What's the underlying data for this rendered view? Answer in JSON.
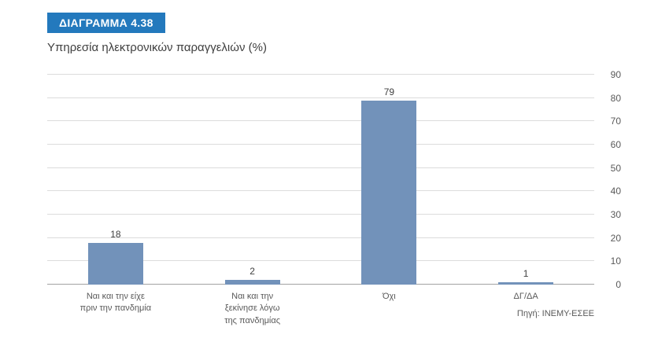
{
  "header": {
    "badge": "ΔΙΑΓΡΑΜΜΑ 4.38",
    "title": "Υπηρεσία ηλεκτρονικών παραγγελιών (%)"
  },
  "chart_data": {
    "type": "bar",
    "categories": [
      "Ναι και την είχε\nπριν την πανδημία",
      "Ναι και την\nξεκίνησε λόγω\nτης πανδημίας",
      "Όχι",
      "ΔΓ/ΔΑ"
    ],
    "values": [
      18,
      2,
      79,
      1
    ],
    "title": "Υπηρεσία ηλεκτρονικών παραγγελιών (%)",
    "xlabel": "",
    "ylabel": "",
    "ylim": [
      0,
      90
    ],
    "ytick_step": 10,
    "yaxis_side": "right",
    "grid": true,
    "legend": "none",
    "data_labels": true
  },
  "colors": {
    "badge": "#2379bd",
    "bar": "#7292ba",
    "gridline": "#dcdcdc",
    "baseline": "#a3a3a3"
  },
  "footer": {
    "source": "Πηγή: ΙΝΕΜΥ-ΕΣΕΕ"
  }
}
